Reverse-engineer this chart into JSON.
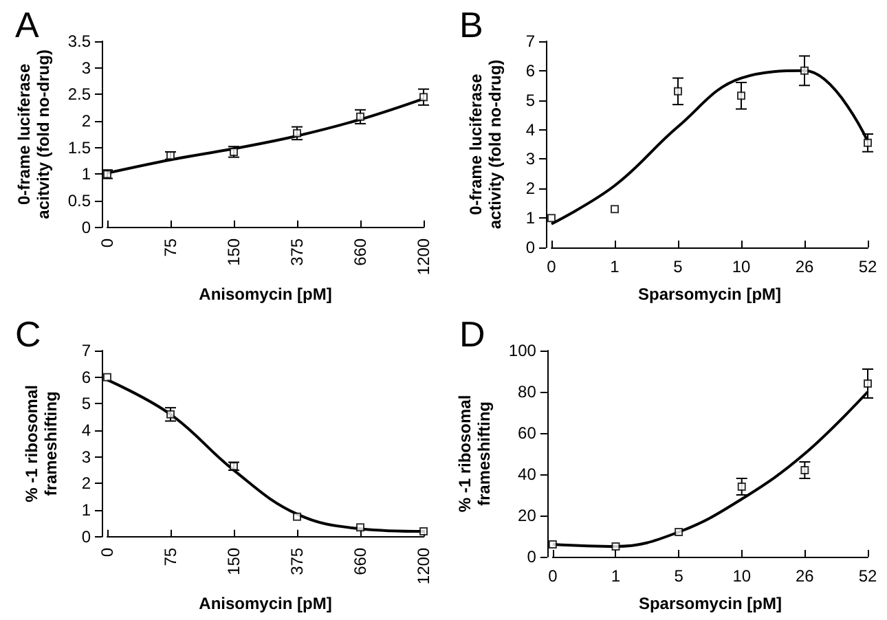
{
  "chart_data": [
    {
      "type": "scatter",
      "title": "A",
      "xlabel": "Anisomycin [pM]",
      "ylabel": "0-frame luciferase\nacitvity (fold no-drug)",
      "categories": [
        "0",
        "75",
        "150",
        "375",
        "660",
        "1200"
      ],
      "ylim": [
        0,
        3.5
      ],
      "yticks": [
        0,
        0.5,
        1,
        1.5,
        2,
        2.5,
        3,
        3.5
      ],
      "series": [
        {
          "color": "#000000",
          "marker": "square",
          "values": [
            1.0,
            1.35,
            1.42,
            1.77,
            2.08,
            2.45
          ],
          "errors": [
            0.08,
            0.07,
            0.1,
            0.12,
            0.13,
            0.15
          ]
        },
        {
          "type": "line",
          "color": "#000000",
          "marker": "none",
          "values": [
            1.02,
            1.27,
            1.48,
            1.72,
            2.03,
            2.42
          ]
        }
      ]
    },
    {
      "type": "scatter",
      "title": "B",
      "xlabel": "Sparsomycin [pM]",
      "ylabel": "0-frame luciferase\nactivity (fold no-drug)",
      "categories": [
        "0",
        "1",
        "5",
        "10",
        "26",
        "52"
      ],
      "ylim": [
        0,
        7
      ],
      "yticks": [
        0,
        1,
        2,
        3,
        4,
        5,
        6,
        7
      ],
      "series": [
        {
          "color": "#000000",
          "marker": "square",
          "values": [
            1.0,
            1.3,
            5.3,
            5.15,
            6.0,
            3.55
          ],
          "errors": [
            null,
            null,
            0.45,
            0.45,
            0.5,
            0.3
          ]
        },
        {
          "type": "line",
          "color": "#000000",
          "marker": "none",
          "values": [
            0.8,
            2.1,
            4.1,
            5.75,
            6.0,
            3.6
          ]
        }
      ]
    },
    {
      "type": "scatter",
      "title": "C",
      "xlabel": "Anisomycin [pM]",
      "ylabel": "% -1 ribosomal\nframeshifting",
      "categories": [
        "0",
        "75",
        "150",
        "375",
        "660",
        "1200"
      ],
      "ylim": [
        0,
        7
      ],
      "yticks": [
        0,
        1,
        2,
        3,
        4,
        5,
        6,
        7
      ],
      "series": [
        {
          "color": "#000000",
          "marker": "square",
          "values": [
            6.0,
            4.6,
            2.65,
            0.75,
            0.35,
            0.2
          ],
          "errors": [
            null,
            0.25,
            0.15,
            null,
            null,
            null
          ]
        },
        {
          "type": "line",
          "color": "#000000",
          "marker": "none",
          "values": [
            5.9,
            4.6,
            2.5,
            0.85,
            0.3,
            0.2
          ]
        }
      ]
    },
    {
      "type": "scatter",
      "title": "D",
      "xlabel": "Sparsomycin [pM]",
      "ylabel": "% -1 ribosomal\nframeshifting",
      "categories": [
        "0",
        "1",
        "5",
        "10",
        "26",
        "52"
      ],
      "ylim": [
        0,
        100
      ],
      "yticks": [
        0,
        20,
        40,
        60,
        80,
        100
      ],
      "series": [
        {
          "color": "#000000",
          "marker": "square",
          "values": [
            6,
            5,
            12,
            34,
            42,
            84
          ],
          "errors": [
            null,
            null,
            null,
            4,
            4,
            7
          ]
        },
        {
          "type": "line",
          "color": "#000000",
          "marker": "none",
          "values": [
            6,
            5,
            12,
            28,
            50,
            80
          ]
        }
      ]
    }
  ]
}
